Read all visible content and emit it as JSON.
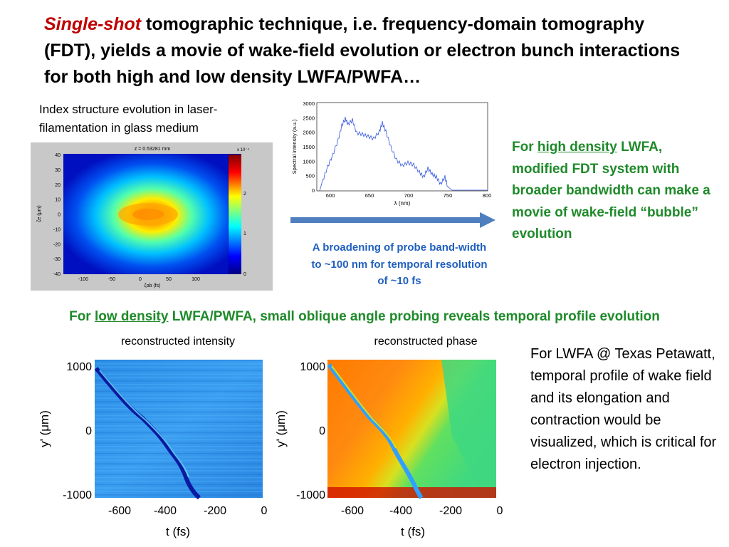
{
  "title": {
    "em": "Single-shot",
    "rest": " tomographic technique, i.e. frequency-domain tomography (FDT), yields a movie of wake-field evolution or electron bunch interactions for both high and low density LWFA/PWFA…"
  },
  "index_caption": "Index structure evolution in laser-filamentation in glass medium",
  "heatmap": {
    "title": "z = 0.53281 mm",
    "ylabel": "ζe (μm)",
    "xlabel": "ζob (fs)",
    "yticks": [
      "40",
      "30",
      "20",
      "10",
      "0",
      "-10",
      "-20",
      "-30",
      "-40"
    ],
    "xticks": [
      "-100",
      "-50",
      "0",
      "50",
      "100"
    ],
    "colorbar_ticks": [
      "2",
      "1",
      "0"
    ],
    "colorbar_exp": "x 10⁻⁴"
  },
  "spectrum": {
    "ylabel": "Spectral intensity (a.u.)",
    "xlabel": "λ (nm)",
    "yticks": [
      "3000",
      "2500",
      "2000",
      "1500",
      "1000",
      "500",
      "0"
    ],
    "xticks": [
      "600",
      "650",
      "700",
      "750",
      "800"
    ]
  },
  "arrow_caption": "A broadening of probe band-width to ~100 nm for temporal resolution of ~10 fs",
  "high_density": {
    "pre": "For ",
    "link": "high density",
    "post": " LWFA, modified FDT system with broader bandwidth can make a movie of wake-field “bubble” evolution"
  },
  "low_density": {
    "pre": "For ",
    "link": "low density",
    "post": " LWFA/PWFA, small oblique angle probing reveals temporal profile evolution"
  },
  "plot_intensity": {
    "title": "reconstructed intensity",
    "ylabel": "y' (μm)",
    "xlabel": "t (fs)",
    "yticks": [
      "1000",
      "0",
      "-1000"
    ],
    "xticks": [
      "-600",
      "-400",
      "-200",
      "0"
    ]
  },
  "plot_phase": {
    "title": "reconstructed phase",
    "ylabel": "y' (μm)",
    "xlabel": "t (fs)",
    "yticks": [
      "1000",
      "0",
      "-1000"
    ],
    "xticks": [
      "-600",
      "-400",
      "-200",
      "0"
    ]
  },
  "texas_text": "For LWFA @ Texas Petawatt, temporal profile of wake field and its elongation and contraction would be visualized, which is critical for electron injection.",
  "colors": {
    "accent_red": "#c00000",
    "green": "#1f8a2a",
    "blue_text": "#1f5fbf",
    "arrow": "#4f7fbf"
  }
}
